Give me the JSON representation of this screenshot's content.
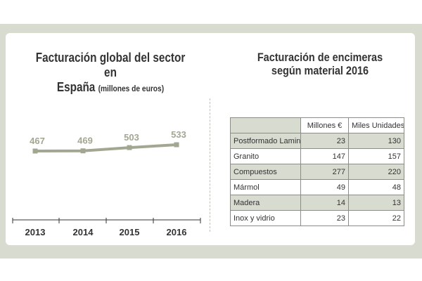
{
  "line_chart": {
    "title_line1": "Facturación global del sector en",
    "title_line2": "España",
    "title_units": "(millones de euros)"
  },
  "table": {
    "title_line1": "Facturación de encimeras",
    "title_line2": "según material 2016",
    "headers": [
      "",
      "Millones €",
      "Miles Unidades"
    ],
    "rows": [
      [
        "Postformado Laminado",
        "23",
        "130"
      ],
      [
        "Granito",
        "147",
        "157"
      ],
      [
        "Compuestos",
        "277",
        "220"
      ],
      [
        "Mármol",
        "49",
        "48"
      ],
      [
        "Madera",
        "14",
        "13"
      ],
      [
        "Inox y vidrio",
        "23",
        "22"
      ]
    ]
  },
  "colors": {
    "line": "#a2a791",
    "value_label": "#a2a791",
    "axis": "#333333",
    "table_band": "#d8dbd0"
  },
  "chart_data": [
    {
      "type": "line",
      "title": "Facturación global del sector en España (millones de euros)",
      "x": [
        "2013",
        "2014",
        "2015",
        "2016"
      ],
      "series": [
        {
          "values": [
            467,
            469,
            503,
            533
          ]
        }
      ],
      "data_labels": [
        "467",
        "469",
        "503",
        "533"
      ],
      "grid": false
    },
    {
      "type": "table",
      "title": "Facturación de encimeras según material 2016",
      "columns": [
        "Millones €",
        "Miles Unidades"
      ],
      "rows": [
        {
          "label": "Postformado Laminado",
          "values": [
            23,
            130
          ]
        },
        {
          "label": "Granito",
          "values": [
            147,
            157
          ]
        },
        {
          "label": "Compuestos",
          "values": [
            277,
            220
          ]
        },
        {
          "label": "Mármol",
          "values": [
            49,
            48
          ]
        },
        {
          "label": "Madera",
          "values": [
            14,
            13
          ]
        },
        {
          "label": "Inox y vidrio",
          "values": [
            23,
            22
          ]
        }
      ]
    }
  ]
}
